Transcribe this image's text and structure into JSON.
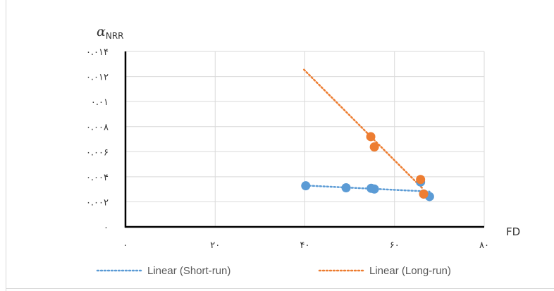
{
  "chart_data": {
    "type": "scatter",
    "ylabel_main": "α",
    "ylabel_sub": "NRR",
    "xlabel": "FD",
    "xlim": [
      0,
      80
    ],
    "ylim": [
      0,
      0.014
    ],
    "x_ticks": [
      {
        "value": 0,
        "label": "۰"
      },
      {
        "value": 20,
        "label": "۲۰"
      },
      {
        "value": 40,
        "label": "۴۰"
      },
      {
        "value": 60,
        "label": "۶۰"
      },
      {
        "value": 80,
        "label": "۸۰"
      }
    ],
    "y_ticks": [
      {
        "value": 0,
        "label": "۰"
      },
      {
        "value": 0.002,
        "label": "۰.۰۰۲"
      },
      {
        "value": 0.004,
        "label": "۰.۰۰۴"
      },
      {
        "value": 0.006,
        "label": "۰.۰۰۶"
      },
      {
        "value": 0.008,
        "label": "۰.۰۰۸"
      },
      {
        "value": 0.01,
        "label": "۰.۰۱"
      },
      {
        "value": 0.012,
        "label": "۰.۰۱۲"
      },
      {
        "value": 0.014,
        "label": "۰.۰۱۴"
      }
    ],
    "grid": true,
    "legend_position": "bottom",
    "series": [
      {
        "name": "Linear (Short-run)",
        "color": "#5B9BD5",
        "points": [
          {
            "x": 40.2,
            "y": 0.00328
          },
          {
            "x": 49.2,
            "y": 0.00312
          },
          {
            "x": 54.8,
            "y": 0.00308
          },
          {
            "x": 55.5,
            "y": 0.00302
          },
          {
            "x": 65.8,
            "y": 0.00358
          },
          {
            "x": 66.5,
            "y": 0.00262
          },
          {
            "x": 67.8,
            "y": 0.00242
          }
        ],
        "trend": {
          "x": [
            40.2,
            67.8
          ],
          "y": [
            0.0033,
            0.00282
          ]
        }
      },
      {
        "name": "Linear (Long-run)",
        "color": "#ED7D31",
        "points": [
          {
            "x": 54.7,
            "y": 0.0072
          },
          {
            "x": 55.5,
            "y": 0.00638
          },
          {
            "x": 65.8,
            "y": 0.00378
          },
          {
            "x": 66.5,
            "y": 0.00262
          }
        ],
        "trend": {
          "x": [
            39.8,
            66.3
          ],
          "y": [
            0.01255,
            0.00305
          ]
        }
      }
    ]
  }
}
